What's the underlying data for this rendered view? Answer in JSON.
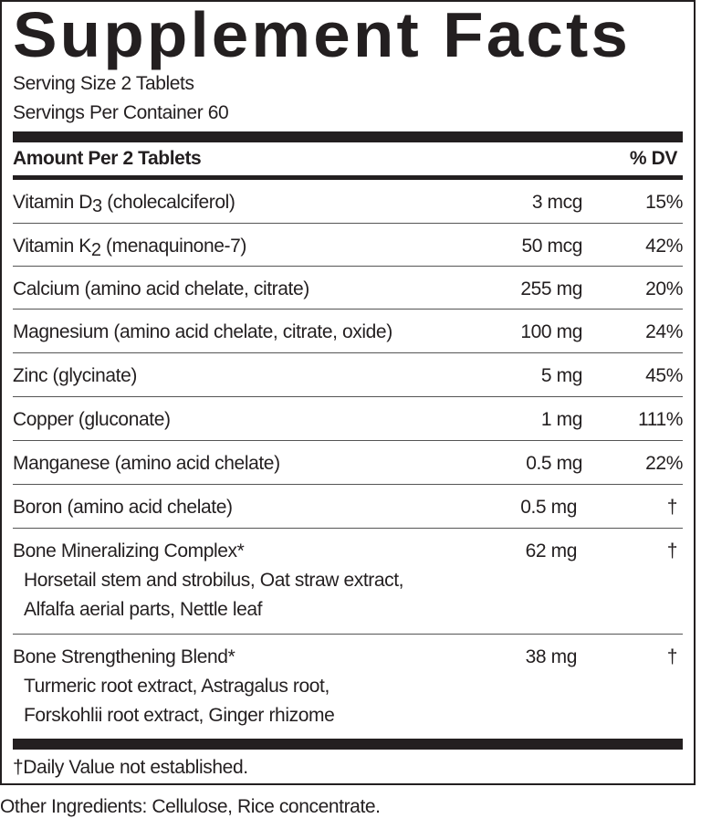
{
  "title": "Supplement Facts",
  "serving_size": "Serving Size 2 Tablets",
  "servings_per_container": "Servings Per Container 60",
  "header": {
    "amount_label": "Amount Per 2 Tablets",
    "dv_label": "% DV"
  },
  "rows": [
    {
      "name": "Vitamin D",
      "subscript": "3",
      "name_rest": " (cholecalciferol)",
      "amount": "3 mcg",
      "dv": "15%"
    },
    {
      "name": "Vitamin K",
      "subscript": "2",
      "name_rest": " (menaquinone-7)",
      "amount": "50 mcg",
      "dv": "42%"
    },
    {
      "name": "Calcium (amino acid chelate, citrate)",
      "amount": "255 mg",
      "dv": "20%"
    },
    {
      "name": "Magnesium (amino acid chelate, citrate, oxide)",
      "amount": "100 mg",
      "dv": "24%"
    },
    {
      "name": "Zinc (glycinate)",
      "amount": "5 mg",
      "dv": "45%"
    },
    {
      "name": "Copper (gluconate)",
      "amount": "1 mg",
      "dv": "111%"
    },
    {
      "name": "Manganese (amino acid chelate)",
      "amount": "0.5 mg",
      "dv": "22%"
    },
    {
      "name": "Boron (amino acid chelate)",
      "amount": "0.5 mg",
      "dv": "†"
    },
    {
      "name": "Bone Mineralizing Complex*",
      "amount": "62 mg",
      "dv": "†",
      "sub_lines": [
        "Horsetail stem and strobilus, Oat straw extract,",
        "Alfalfa aerial parts, Nettle leaf"
      ]
    },
    {
      "name": "Bone Strengthening Blend*",
      "amount": "38 mg",
      "dv": "†",
      "sub_lines": [
        "Turmeric root extract, Astragalus root,",
        "Forskohlii root extract, Ginger rhizome"
      ]
    }
  ],
  "footnote": "†Daily Value not established.",
  "other_ingredients": "Other Ingredients: Cellulose, Rice concentrate."
}
